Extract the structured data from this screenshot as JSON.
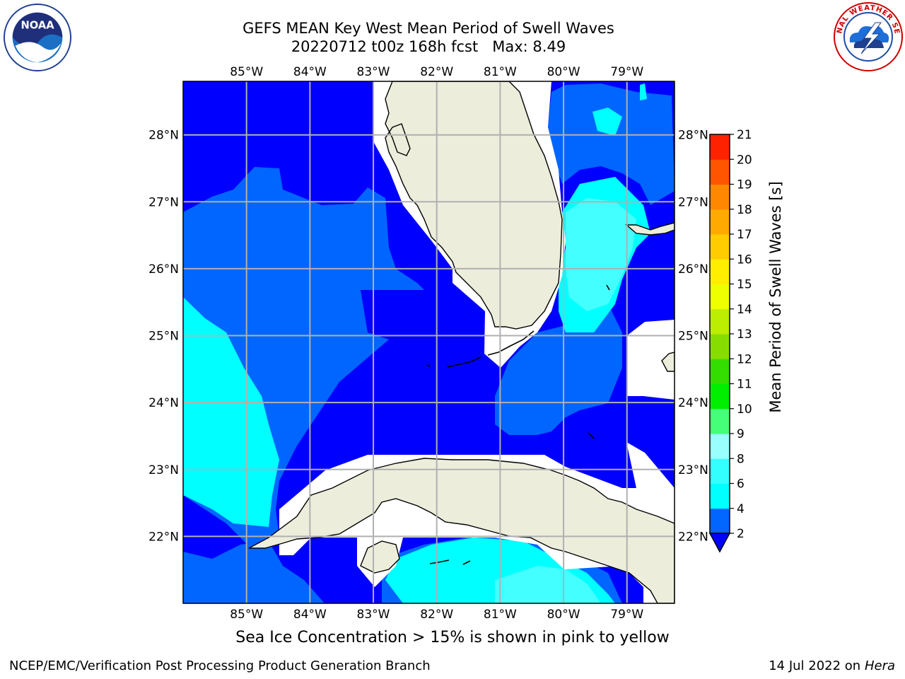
{
  "title": {
    "line1": "GEFS MEAN Key West Mean Period of Swell Waves",
    "line2_run": "20220712 t00z 168h fcst",
    "line2_max": "Max: 8.49"
  },
  "map": {
    "lon_range": [
      -86,
      -78.25
    ],
    "lat_range": [
      21,
      28.8
    ],
    "lon_ticks": [
      {
        "value": -85,
        "label": "85°W"
      },
      {
        "value": -84,
        "label": "84°W"
      },
      {
        "value": -83,
        "label": "83°W"
      },
      {
        "value": -82,
        "label": "82°W"
      },
      {
        "value": -81,
        "label": "81°W"
      },
      {
        "value": -80,
        "label": "80°W"
      },
      {
        "value": -79,
        "label": "79°W"
      }
    ],
    "lat_ticks": [
      {
        "value": 28,
        "label": "28°N"
      },
      {
        "value": 27,
        "label": "27°N"
      },
      {
        "value": 26,
        "label": "26°N"
      },
      {
        "value": 25,
        "label": "25°N"
      },
      {
        "value": 24,
        "label": "24°N"
      },
      {
        "value": 23,
        "label": "23°N"
      },
      {
        "value": 22,
        "label": "22°N"
      }
    ],
    "colors": {
      "ocean_base": "#0000ff",
      "land": "#ededdc",
      "grid": "#b0b0b0",
      "coast": "#000000"
    }
  },
  "colorbar": {
    "label": "Mean Period of Swell Waves [s]",
    "levels": [
      "2",
      "4",
      "6",
      "8",
      "9",
      "10",
      "11",
      "12",
      "13",
      "14",
      "15",
      "16",
      "17",
      "18",
      "19",
      "20",
      "21"
    ],
    "extend": "min",
    "band_colors": [
      "#0066ff",
      "#00ffff",
      "#33ffff",
      "#99ffff",
      "#44ff77",
      "#00ee00",
      "#33dd00",
      "#88dd00",
      "#bbee00",
      "#eeff00",
      "#ffee00",
      "#ffcc00",
      "#ffaa00",
      "#ff8800",
      "#ff5500",
      "#ff2200"
    ],
    "under_color": "#0000ff"
  },
  "caption": "Sea Ice Concentration > 15% is shown in pink to yellow",
  "footer": {
    "left": "NCEP/EMC/Verification Post Processing Product Generation Branch",
    "date": "14 Jul 2022 on ",
    "host": "Hera"
  },
  "logos": {
    "noaa": {
      "icon": "noaa-logo",
      "text": "NOAA"
    },
    "nws": {
      "icon": "nws-logo",
      "text": "NATIONAL WEATHER SERVICE"
    }
  }
}
